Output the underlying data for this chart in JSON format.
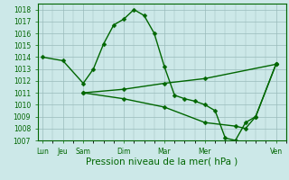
{
  "background_color": "#cce8e8",
  "grid_color": "#99bbbb",
  "line_color": "#006600",
  "marker": "D",
  "marker_size": 2.5,
  "linewidth": 1.0,
  "xlabel": "Pression niveau de la mer( hPa )",
  "xlabel_fontsize": 7.5,
  "ylim": [
    1007,
    1018.5
  ],
  "ytick_min": 1007,
  "ytick_max": 1018,
  "xtick_labels": [
    "Lun",
    "Jeu",
    "Sam",
    "Dim",
    "Mar",
    "Mer",
    "Ven"
  ],
  "xtick_positions": [
    0,
    2,
    4,
    8,
    12,
    16,
    23
  ],
  "tick_fontsize": 5.5,
  "series1_x": [
    0,
    2,
    4,
    5,
    6,
    7,
    8,
    9,
    10,
    11,
    12,
    13,
    14,
    15,
    16,
    17,
    18,
    19,
    20,
    21,
    23
  ],
  "series1_y": [
    1014.0,
    1013.7,
    1011.8,
    1013.0,
    1015.1,
    1016.7,
    1017.2,
    1018.0,
    1017.5,
    1016.0,
    1013.2,
    1010.8,
    1010.5,
    1010.3,
    1010.0,
    1009.5,
    1007.2,
    1007.0,
    1008.5,
    1009.0,
    1013.4
  ],
  "series2_x": [
    4,
    8,
    12,
    16,
    23
  ],
  "series2_y": [
    1011.0,
    1011.3,
    1011.8,
    1012.2,
    1013.4
  ],
  "series3_x": [
    4,
    8,
    12,
    16,
    19,
    20,
    21,
    23
  ],
  "series3_y": [
    1011.0,
    1010.5,
    1009.8,
    1008.5,
    1008.2,
    1008.0,
    1009.0,
    1013.4
  ]
}
